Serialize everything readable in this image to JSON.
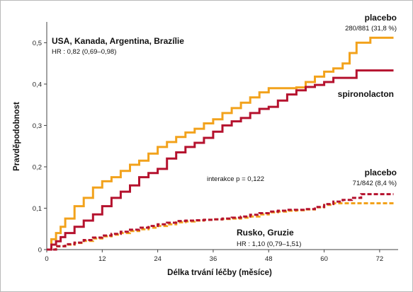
{
  "chart_data": {
    "type": "line",
    "xlabel": "Délka trvání léčby (měsíce)",
    "ylabel": "Pravděpodobnost",
    "xlim": [
      0,
      76
    ],
    "ylim": [
      0,
      0.54
    ],
    "x_ticks": [
      0,
      12,
      24,
      36,
      48,
      60,
      72
    ],
    "y_ticks": [
      0,
      0.1,
      0.2,
      0.3,
      0.4,
      0.5
    ],
    "y_tick_labels": [
      "0",
      "0,1",
      "0,2",
      "0,3",
      "0,4",
      "0,5"
    ],
    "colors": {
      "placebo": "#f2a21c",
      "spironolacton": "#b5122e"
    },
    "series": [
      {
        "name": "placebo",
        "group": "USA, Kanada, Argentina, Brazílie",
        "style": "solid",
        "color": "#f2a21c",
        "x": [
          0,
          1,
          2,
          3,
          4,
          6,
          8,
          10,
          12,
          14,
          16,
          18,
          20,
          22,
          24,
          26,
          28,
          30,
          32,
          34,
          36,
          38,
          40,
          42,
          44,
          46,
          48,
          50,
          52,
          54,
          56,
          58,
          60,
          62,
          64,
          65.5,
          67,
          70,
          72,
          75
        ],
        "y": [
          0,
          0.025,
          0.04,
          0.055,
          0.075,
          0.105,
          0.125,
          0.15,
          0.165,
          0.175,
          0.19,
          0.205,
          0.215,
          0.232,
          0.248,
          0.26,
          0.272,
          0.283,
          0.292,
          0.305,
          0.315,
          0.33,
          0.342,
          0.355,
          0.368,
          0.38,
          0.39,
          0.39,
          0.39,
          0.392,
          0.405,
          0.418,
          0.43,
          0.438,
          0.45,
          0.475,
          0.5,
          0.512,
          0.512,
          0.512
        ]
      },
      {
        "name": "spironolacton",
        "group": "USA, Kanada, Argentina, Brazílie",
        "style": "solid",
        "color": "#b5122e",
        "x": [
          0,
          1,
          2,
          3,
          4,
          6,
          8,
          10,
          12,
          14,
          16,
          18,
          20,
          22,
          24,
          26,
          28,
          30,
          32,
          34,
          36,
          38,
          40,
          42,
          44,
          46,
          48,
          50,
          52,
          54,
          56,
          58,
          60,
          62,
          64,
          65.5,
          67,
          70,
          72,
          75
        ],
        "y": [
          0,
          0.012,
          0.02,
          0.03,
          0.04,
          0.055,
          0.07,
          0.085,
          0.105,
          0.125,
          0.14,
          0.155,
          0.175,
          0.185,
          0.195,
          0.22,
          0.235,
          0.248,
          0.258,
          0.27,
          0.285,
          0.3,
          0.31,
          0.318,
          0.33,
          0.34,
          0.345,
          0.36,
          0.375,
          0.385,
          0.393,
          0.398,
          0.405,
          0.415,
          0.415,
          0.415,
          0.433,
          0.433,
          0.433,
          0.433
        ]
      },
      {
        "name": "placebo",
        "group": "Rusko, Gruzie",
        "style": "dashed",
        "color": "#f2a21c",
        "x": [
          0,
          2,
          4,
          6,
          8,
          10,
          12,
          14,
          16,
          18,
          20,
          22,
          24,
          26,
          28,
          30,
          32,
          34,
          36,
          38,
          40,
          42,
          44,
          46,
          48,
          50,
          52,
          54,
          56,
          58,
          60,
          62,
          64,
          66,
          68,
          70,
          72,
          75
        ],
        "y": [
          0,
          0.008,
          0.012,
          0.016,
          0.021,
          0.027,
          0.032,
          0.036,
          0.04,
          0.045,
          0.049,
          0.053,
          0.057,
          0.061,
          0.066,
          0.068,
          0.07,
          0.072,
          0.073,
          0.074,
          0.075,
          0.077,
          0.08,
          0.085,
          0.09,
          0.092,
          0.094,
          0.095,
          0.097,
          0.102,
          0.108,
          0.112,
          0.112,
          0.112,
          0.112,
          0.112,
          0.112,
          0.112
        ]
      },
      {
        "name": "spironolacton",
        "group": "Rusko, Gruzie",
        "style": "dashed",
        "color": "#b5122e",
        "x": [
          0,
          2,
          4,
          6,
          8,
          10,
          12,
          14,
          16,
          18,
          20,
          22,
          24,
          26,
          28,
          30,
          32,
          34,
          36,
          38,
          40,
          42,
          44,
          46,
          48,
          50,
          52,
          54,
          56,
          58,
          60,
          62,
          64,
          66,
          68,
          70,
          72,
          75
        ],
        "y": [
          0,
          0.008,
          0.013,
          0.017,
          0.023,
          0.029,
          0.034,
          0.038,
          0.043,
          0.048,
          0.053,
          0.057,
          0.061,
          0.065,
          0.069,
          0.07,
          0.071,
          0.072,
          0.073,
          0.075,
          0.077,
          0.08,
          0.084,
          0.088,
          0.092,
          0.094,
          0.096,
          0.096,
          0.098,
          0.103,
          0.11,
          0.116,
          0.12,
          0.125,
          0.134,
          0.134,
          0.134,
          0.134
        ]
      }
    ],
    "annotations": {
      "top_group": "USA, Kanada, Argentina, Brazílie",
      "top_hr": "HR : 0,82 (0,69–0,98)",
      "top_placebo_label": "placebo",
      "top_placebo_count": "280/881 (31,8 %)",
      "top_spiro_label": "spironolacton",
      "bottom_placebo_label": "placebo",
      "bottom_placebo_count": "71/842 (8,4 %)",
      "interaction": "interakce p = 0,122",
      "bottom_group": "Rusko, Gruzie",
      "bottom_hr": "HR : 1,10 (0,79–1,51)"
    }
  }
}
